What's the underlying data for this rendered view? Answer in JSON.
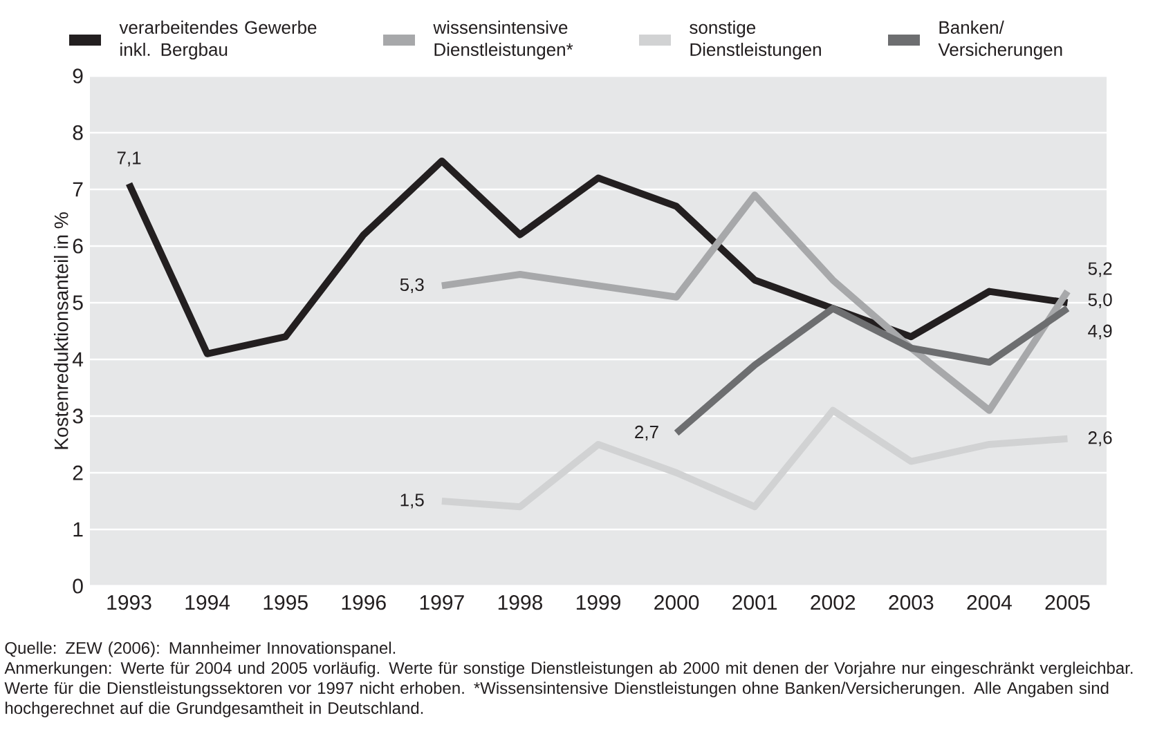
{
  "chart_data": {
    "type": "line",
    "ylabel": "Kostenreduktionsanteil in %",
    "categories": [
      "1993",
      "1994",
      "1995",
      "1996",
      "1997",
      "1998",
      "1999",
      "2000",
      "2001",
      "2002",
      "2003",
      "2004",
      "2005"
    ],
    "series": [
      {
        "name": "verarbeitendes Gewerbe inkl. Bergbau",
        "color": "#231f20",
        "values": [
          7.1,
          4.1,
          4.4,
          6.2,
          7.5,
          6.2,
          7.2,
          6.7,
          5.4,
          4.9,
          4.4,
          5.2,
          5.0
        ],
        "value_labels": [
          "7,1",
          null,
          null,
          null,
          null,
          null,
          null,
          null,
          null,
          null,
          null,
          null,
          "5,0"
        ]
      },
      {
        "name": "wissensintensive Dienstleistungen*",
        "color": "#a7a8aa",
        "values": [
          null,
          null,
          null,
          null,
          5.3,
          5.5,
          5.3,
          5.1,
          6.9,
          5.4,
          4.2,
          3.1,
          5.2
        ],
        "value_labels": [
          null,
          null,
          null,
          null,
          "5,3",
          null,
          null,
          null,
          null,
          null,
          null,
          null,
          "5,2"
        ]
      },
      {
        "name": "sonstige Dienstleistungen",
        "color": "#d1d2d3",
        "values": [
          null,
          null,
          null,
          null,
          1.5,
          1.4,
          2.5,
          2.0,
          1.4,
          3.1,
          2.2,
          2.5,
          2.6
        ],
        "value_labels": [
          null,
          null,
          null,
          null,
          "1,5",
          null,
          null,
          null,
          null,
          null,
          null,
          null,
          "2,6"
        ]
      },
      {
        "name": "Banken/ Versicherungen",
        "color": "#6d6e70",
        "values": [
          null,
          null,
          null,
          null,
          null,
          null,
          null,
          2.7,
          3.9,
          4.9,
          4.2,
          3.95,
          4.9
        ],
        "value_labels": [
          null,
          null,
          null,
          null,
          null,
          null,
          null,
          "2,7",
          null,
          null,
          null,
          null,
          "4,9"
        ]
      }
    ],
    "ylim": [
      0,
      9
    ],
    "yticks": [
      0,
      1,
      2,
      3,
      4,
      5,
      6,
      7,
      8,
      9
    ],
    "grid": "y",
    "legend": "top",
    "line_style": "solid",
    "marker": "none",
    "annotations": [
      "Quelle: ZEW (2006): Mannheimer Innovationspanel.",
      "Anmerkungen: Werte für 2004 und 2005 vorläufig. Werte für sonstige Dienstleistungen ab 2000 mit denen der Vorjahre nur eingeschränkt vergleichbar. Werte für die Dienstleistungssektoren vor 1997 nicht erhoben. *Wissensintensive Dienstleistungen ohne Banken/Versicherungen. Alle Angaben sind hochgerechnet auf die Grundgesamtheit in Deutschland."
    ]
  }
}
